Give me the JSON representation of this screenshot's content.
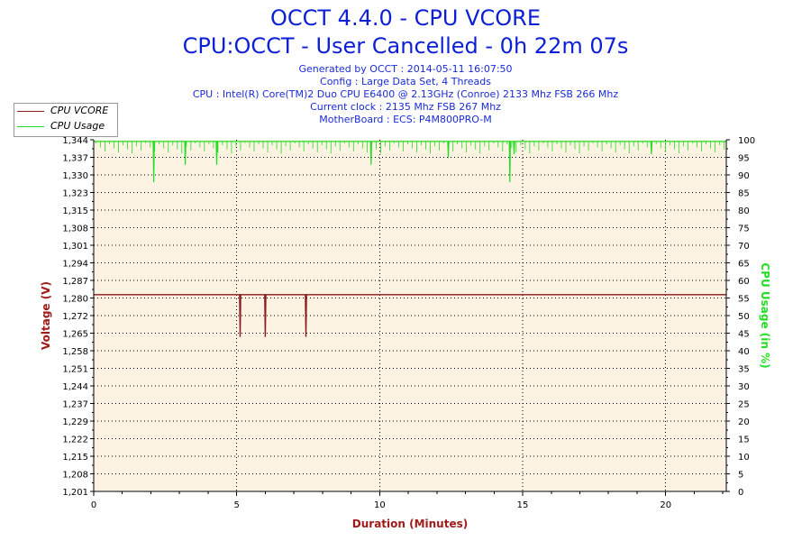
{
  "header": {
    "title_line1": "OCCT 4.4.0 - CPU VCORE",
    "title_line2": "CPU:OCCT - User Cancelled - 0h 22m 07s",
    "info_lines": [
      "Generated by OCCT : 2014-05-11 16:07:50",
      "Config : Large Data Set, 4 Threads",
      "CPU : Intel(R) Core(TM)2 Duo CPU E6400 @ 2.13GHz (Conroe) 2133 Mhz FSB 266 Mhz",
      "Current clock : 2135 Mhz FSB 267 Mhz",
      "MotherBoard : ECS: P4M800PRO-M"
    ]
  },
  "legend": {
    "items": [
      {
        "label": "CPU VCORE",
        "color": "#8b1a1a"
      },
      {
        "label": "CPU Usage",
        "color": "#22dd22"
      }
    ]
  },
  "chart_data": {
    "type": "line",
    "xlabel": "Duration (Minutes)",
    "ylabel_left": "Voltage (V)",
    "ylabel_right": "CPU Usage (in %)",
    "xlim": [
      0,
      22.12
    ],
    "ylim_left": [
      1.201,
      1.344
    ],
    "ylim_right": [
      0,
      100
    ],
    "x_ticks": [
      0,
      5,
      10,
      15,
      20
    ],
    "x_tick_labels": [
      "0",
      "5",
      "10",
      "15",
      "20"
    ],
    "y_left_tick_labels": [
      "1,344",
      "1,337",
      "1,330",
      "1,323",
      "1,315",
      "1,308",
      "1,301",
      "1,294",
      "1,287",
      "1,280",
      "1,272",
      "1,265",
      "1,258",
      "1,251",
      "1,244",
      "1,237",
      "1,229",
      "1,222",
      "1,215",
      "1,208",
      "1,201"
    ],
    "y_right_tick_labels": [
      "100",
      "95",
      "90",
      "85",
      "80",
      "75",
      "70",
      "65",
      "60",
      "55",
      "50",
      "45",
      "40",
      "35",
      "30",
      "25",
      "20",
      "15",
      "10",
      "5",
      "0"
    ],
    "grid": true,
    "legend_position": "top-left",
    "series": [
      {
        "name": "CPU VCORE",
        "axis": "left",
        "color": "#8b1a1a",
        "baseline": 1.281,
        "dips": [
          {
            "x": 5.12,
            "y": 1.264
          },
          {
            "x": 6.0,
            "y": 1.264
          },
          {
            "x": 7.42,
            "y": 1.264
          }
        ]
      },
      {
        "name": "CPU Usage",
        "axis": "right",
        "color": "#22dd22",
        "baseline": 99.5,
        "dips": [
          {
            "x": 2.1,
            "y": 88
          },
          {
            "x": 3.2,
            "y": 93
          },
          {
            "x": 4.3,
            "y": 93
          },
          {
            "x": 9.7,
            "y": 93
          },
          {
            "x": 12.4,
            "y": 95
          },
          {
            "x": 14.55,
            "y": 88
          },
          {
            "x": 14.7,
            "y": 96
          },
          {
            "x": 19.5,
            "y": 96
          }
        ]
      }
    ]
  }
}
